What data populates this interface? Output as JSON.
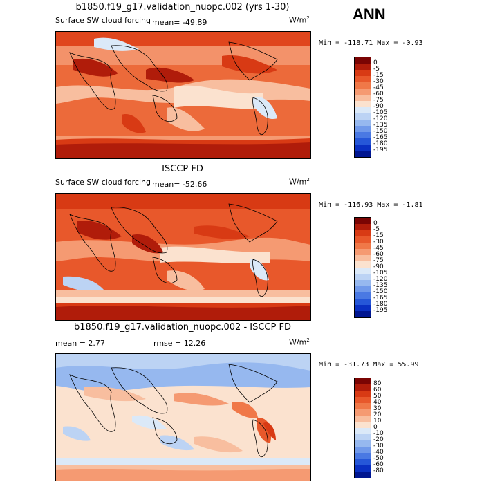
{
  "season": "ANN",
  "units_base": "W/m",
  "units_exp": "2",
  "panels": [
    {
      "title": "b1850.f19_g17.validation_nuopc.002 (yrs 1-30)",
      "variable": "Surface SW cloud forcing",
      "stat_left": "mean=  -49.89",
      "stat_right": "",
      "minmax": "Min = -118.71 Max =  -0.93",
      "levels": [
        "0",
        "-5",
        "-15",
        "-30",
        "-45",
        "-60",
        "-75",
        "-90",
        "-105",
        "-120",
        "-135",
        "-150",
        "-165",
        "-180",
        "-195"
      ],
      "colors": [
        "#7a0403",
        "#b01c0a",
        "#d83a14",
        "#e8582b",
        "#f07848",
        "#f59a72",
        "#f8be9f",
        "#fbe2cf",
        "#dbe9f8",
        "#bcd3f4",
        "#96b8ef",
        "#7099ea",
        "#4a79e3",
        "#2657d8",
        "#0a30c2",
        "#001690"
      ]
    },
    {
      "title": "ISCCP FD",
      "variable": "Surface SW cloud forcing",
      "stat_left": "mean=  -52.66",
      "stat_right": "",
      "minmax": "Min = -116.93 Max =  -1.81",
      "levels": [
        "0",
        "-5",
        "-15",
        "-30",
        "-45",
        "-60",
        "-75",
        "-90",
        "-105",
        "-120",
        "-135",
        "-150",
        "-165",
        "-180",
        "-195"
      ],
      "colors": [
        "#7a0403",
        "#b01c0a",
        "#d83a14",
        "#e8582b",
        "#f07848",
        "#f59a72",
        "#f8be9f",
        "#fbe2cf",
        "#dbe9f8",
        "#bcd3f4",
        "#96b8ef",
        "#7099ea",
        "#4a79e3",
        "#2657d8",
        "#0a30c2",
        "#001690"
      ]
    },
    {
      "title": "b1850.f19_g17.validation_nuopc.002 - ISCCP FD",
      "variable": "",
      "stat_left": "mean =    2.77",
      "stat_right": "rmse =   12.26",
      "minmax": "Min = -31.73 Max =  55.99",
      "levels": [
        "80",
        "60",
        "50",
        "40",
        "30",
        "20",
        "10",
        "0",
        "-10",
        "-20",
        "-30",
        "-40",
        "-50",
        "-60",
        "-80"
      ],
      "colors": [
        "#7a0403",
        "#b01c0a",
        "#d83a14",
        "#e8582b",
        "#f07848",
        "#f59a72",
        "#f8be9f",
        "#fbe2cf",
        "#dbe9f8",
        "#bcd3f4",
        "#96b8ef",
        "#7099ea",
        "#4a79e3",
        "#2657d8",
        "#0a30c2",
        "#001690"
      ]
    }
  ]
}
